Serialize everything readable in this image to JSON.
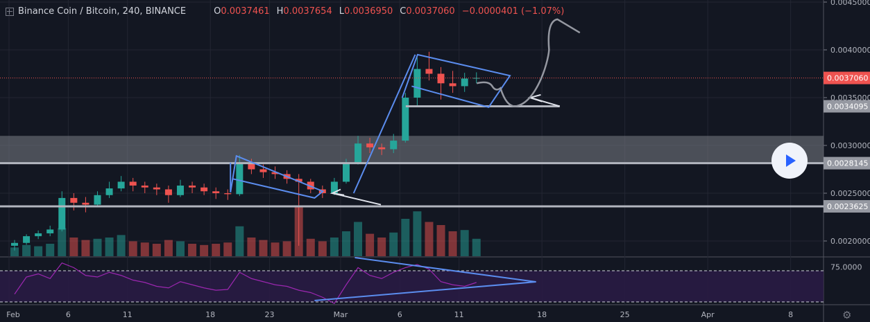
{
  "header": {
    "symbol": "Binance Coin / Bitcoin, 240, BINANCE",
    "o_label": "O",
    "o": "0.0037461",
    "h_label": "H",
    "h": "0.0037654",
    "l_label": "L",
    "l": "0.0036950",
    "c_label": "C",
    "c": "0.0037060",
    "change": "−0.0000401 (−1.07%)"
  },
  "colors": {
    "background": "#131722",
    "up": "#26a69a",
    "down": "#ef5350",
    "drawing": "#5b8def",
    "level": "#b2b5be",
    "rsi": "#9c27b0",
    "last_price": "#ef5350"
  },
  "chart_data": {
    "type": "candlestick",
    "interval": "240",
    "price_ticks": [
      "0.0045000",
      "0.0040000",
      "0.0035000",
      "0.0030000",
      "0.0025000",
      "0.0020000"
    ],
    "price_range": [
      0.00175,
      0.0045
    ],
    "last_price_label": "0.0037060",
    "last_price": 0.003706,
    "levels": [
      {
        "price": 0.0034095,
        "label": "0.0034095"
      },
      {
        "price": 0.0028145,
        "label": "0.0028145"
      },
      {
        "price": 0.0023625,
        "label": "0.0023625"
      }
    ],
    "zone": [
      0.00281,
      0.0031
    ],
    "date_ticks": [
      {
        "label": "Feb",
        "day": 0
      },
      {
        "label": "6",
        "day": 5
      },
      {
        "label": "11",
        "day": 10
      },
      {
        "label": "18",
        "day": 17
      },
      {
        "label": "23",
        "day": 22
      },
      {
        "label": "Mar",
        "day": 28
      },
      {
        "label": "6",
        "day": 33
      },
      {
        "label": "11",
        "day": 38
      },
      {
        "label": "18",
        "day": 45
      },
      {
        "label": "25",
        "day": 52
      },
      {
        "label": "Apr",
        "day": 59
      },
      {
        "label": "8",
        "day": 66
      }
    ],
    "candles_daily_ohlc": [
      [
        0.00195,
        0.00201,
        0.0019,
        0.00198
      ],
      [
        0.00198,
        0.00207,
        0.00196,
        0.00205
      ],
      [
        0.00205,
        0.00211,
        0.00202,
        0.00208
      ],
      [
        0.00208,
        0.00216,
        0.00205,
        0.00212
      ],
      [
        0.00212,
        0.00252,
        0.0021,
        0.00245
      ],
      [
        0.00245,
        0.0025,
        0.00232,
        0.0024
      ],
      [
        0.0024,
        0.00246,
        0.0023,
        0.00238
      ],
      [
        0.00238,
        0.00252,
        0.00236,
        0.00248
      ],
      [
        0.00248,
        0.00262,
        0.00245,
        0.00255
      ],
      [
        0.00255,
        0.00268,
        0.00252,
        0.00262
      ],
      [
        0.00262,
        0.00266,
        0.00252,
        0.00258
      ],
      [
        0.00258,
        0.00262,
        0.0025,
        0.00256
      ],
      [
        0.00256,
        0.0026,
        0.00248,
        0.00254
      ],
      [
        0.00254,
        0.00258,
        0.0024,
        0.00248
      ],
      [
        0.00248,
        0.00264,
        0.00246,
        0.00258
      ],
      [
        0.00258,
        0.00262,
        0.0025,
        0.00256
      ],
      [
        0.00256,
        0.0026,
        0.00248,
        0.00252
      ],
      [
        0.00252,
        0.00256,
        0.00244,
        0.0025
      ],
      [
        0.0025,
        0.00254,
        0.00243,
        0.00249
      ],
      [
        0.00249,
        0.0029,
        0.00247,
        0.00282
      ],
      [
        0.00282,
        0.00286,
        0.0027,
        0.00275
      ],
      [
        0.00275,
        0.0028,
        0.00266,
        0.00272
      ],
      [
        0.00272,
        0.00278,
        0.00265,
        0.0027
      ],
      [
        0.0027,
        0.00274,
        0.0026,
        0.00265
      ],
      [
        0.00265,
        0.0027,
        0.00195,
        0.00262
      ],
      [
        0.00262,
        0.00265,
        0.0025,
        0.00254
      ],
      [
        0.00254,
        0.00258,
        0.00245,
        0.0025
      ],
      [
        0.0025,
        0.00266,
        0.00248,
        0.00262
      ],
      [
        0.00262,
        0.00286,
        0.0026,
        0.00282
      ],
      [
        0.00282,
        0.0031,
        0.0028,
        0.00302
      ],
      [
        0.00302,
        0.00308,
        0.00292,
        0.00298
      ],
      [
        0.00298,
        0.00302,
        0.0029,
        0.00296
      ],
      [
        0.00296,
        0.00312,
        0.00292,
        0.00305
      ],
      [
        0.00305,
        0.00355,
        0.00303,
        0.0035
      ],
      [
        0.0035,
        0.00392,
        0.0034,
        0.0038
      ],
      [
        0.0038,
        0.00398,
        0.00368,
        0.00375
      ],
      [
        0.00375,
        0.00382,
        0.00348,
        0.00365
      ],
      [
        0.00365,
        0.00378,
        0.00355,
        0.00362
      ],
      [
        0.00362,
        0.00376,
        0.00356,
        0.0037
      ],
      [
        0.0037,
        0.003765,
        0.00365,
        0.003706
      ]
    ],
    "volume_relative": [
      14,
      18,
      16,
      20,
      45,
      30,
      26,
      28,
      30,
      34,
      24,
      22,
      20,
      26,
      24,
      20,
      18,
      20,
      22,
      48,
      30,
      26,
      22,
      24,
      80,
      28,
      24,
      30,
      40,
      55,
      36,
      30,
      38,
      60,
      72,
      55,
      50,
      40,
      42,
      28
    ],
    "rsi": {
      "ticks": [
        "75.0000"
      ],
      "bands": [
        70,
        30
      ],
      "values": [
        40,
        62,
        66,
        60,
        80,
        74,
        64,
        62,
        68,
        64,
        58,
        55,
        50,
        48,
        56,
        52,
        48,
        45,
        46,
        68,
        60,
        56,
        52,
        50,
        45,
        42,
        36,
        28,
        52,
        74,
        64,
        60,
        68,
        74,
        78,
        72,
        56,
        52,
        50,
        55
      ]
    }
  }
}
